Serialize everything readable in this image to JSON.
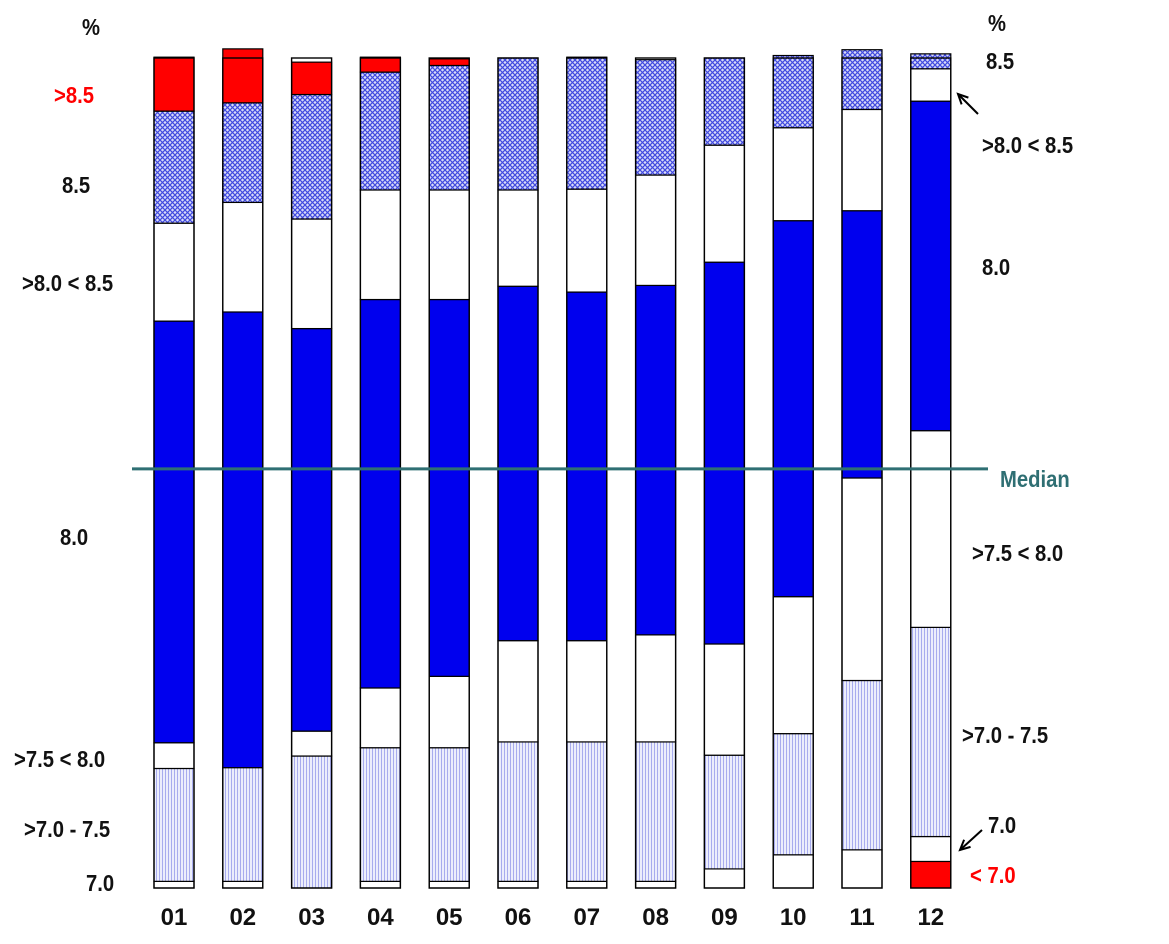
{
  "chart_data": {
    "type": "bar",
    "stacked": true,
    "percent_scale": true,
    "categories": [
      "01",
      "02",
      "03",
      "04",
      "05",
      "06",
      "07",
      "08",
      "09",
      "10",
      "11",
      "12"
    ],
    "unit_label_left": "%",
    "unit_label_right": "%",
    "median_label": "Median",
    "median_value": 50.5,
    "left_labels": {
      "gt85": ">8.5",
      "v85": "8.5",
      "r80_85": ">8.0 < 8.5",
      "v80": "8.0",
      "r75_80": ">7.5 < 8.0",
      "r70_75": ">7.0 - 7.5",
      "v70": "7.0"
    },
    "right_labels": {
      "v85": "8.5",
      "r80_85": ">8.0 < 8.5",
      "v80": "8.0",
      "r75_80": ">7.5 < 8.0",
      "r70_75": ">7.0 - 7.5",
      "v70": "7.0",
      "lt70": "< 7.0"
    },
    "series": [
      {
        "key": "lt70",
        "values": [
          0.0,
          0.0,
          0.0,
          0.0,
          0.0,
          0.0,
          0.0,
          0.0,
          0.0,
          0.0,
          0.0,
          3.2
        ]
      },
      {
        "key": "v70",
        "values": [
          0.8,
          0.8,
          0.0,
          0.8,
          0.8,
          0.8,
          0.8,
          0.8,
          2.3,
          4.0,
          4.6,
          3.0
        ]
      },
      {
        "key": "r70_75",
        "values": [
          13.6,
          13.7,
          15.9,
          16.1,
          16.1,
          16.8,
          16.8,
          16.8,
          13.7,
          14.6,
          20.4,
          25.2
        ]
      },
      {
        "key": "r75_80",
        "values": [
          3.1,
          0.0,
          3.0,
          7.2,
          8.6,
          12.2,
          12.2,
          12.9,
          13.4,
          16.5,
          24.4,
          23.7
        ]
      },
      {
        "key": "v80",
        "values": [
          50.8,
          54.9,
          48.5,
          46.8,
          45.4,
          42.7,
          42.0,
          42.1,
          46.0,
          45.3,
          32.2,
          39.7
        ]
      },
      {
        "key": "r80_85",
        "values": [
          11.8,
          13.2,
          13.2,
          13.2,
          13.2,
          11.6,
          12.4,
          13.3,
          14.1,
          11.2,
          12.2,
          3.9
        ]
      },
      {
        "key": "v85",
        "values": [
          13.5,
          12.0,
          15.0,
          14.2,
          15.0,
          15.9,
          15.9,
          13.9,
          10.5,
          8.7,
          7.2,
          1.8
        ]
      },
      {
        "key": "gt85",
        "values": [
          6.5,
          6.5,
          3.9,
          1.8,
          0.8,
          0.0,
          0.0,
          0.0,
          0.0,
          0.0,
          0.0,
          0.0
        ]
      }
    ],
    "ylim": [
      0,
      100
    ],
    "colors": {
      "gt85": "#ff0000",
      "v85": "#6a70ea",
      "r80_85": "#ffffff",
      "v80": "#0000ee",
      "r75_80": "#ffffff",
      "r70_75": "#c4c6f2",
      "v70": "#ffffff",
      "lt70": "#ff0000",
      "median": "#2f6f73"
    }
  }
}
